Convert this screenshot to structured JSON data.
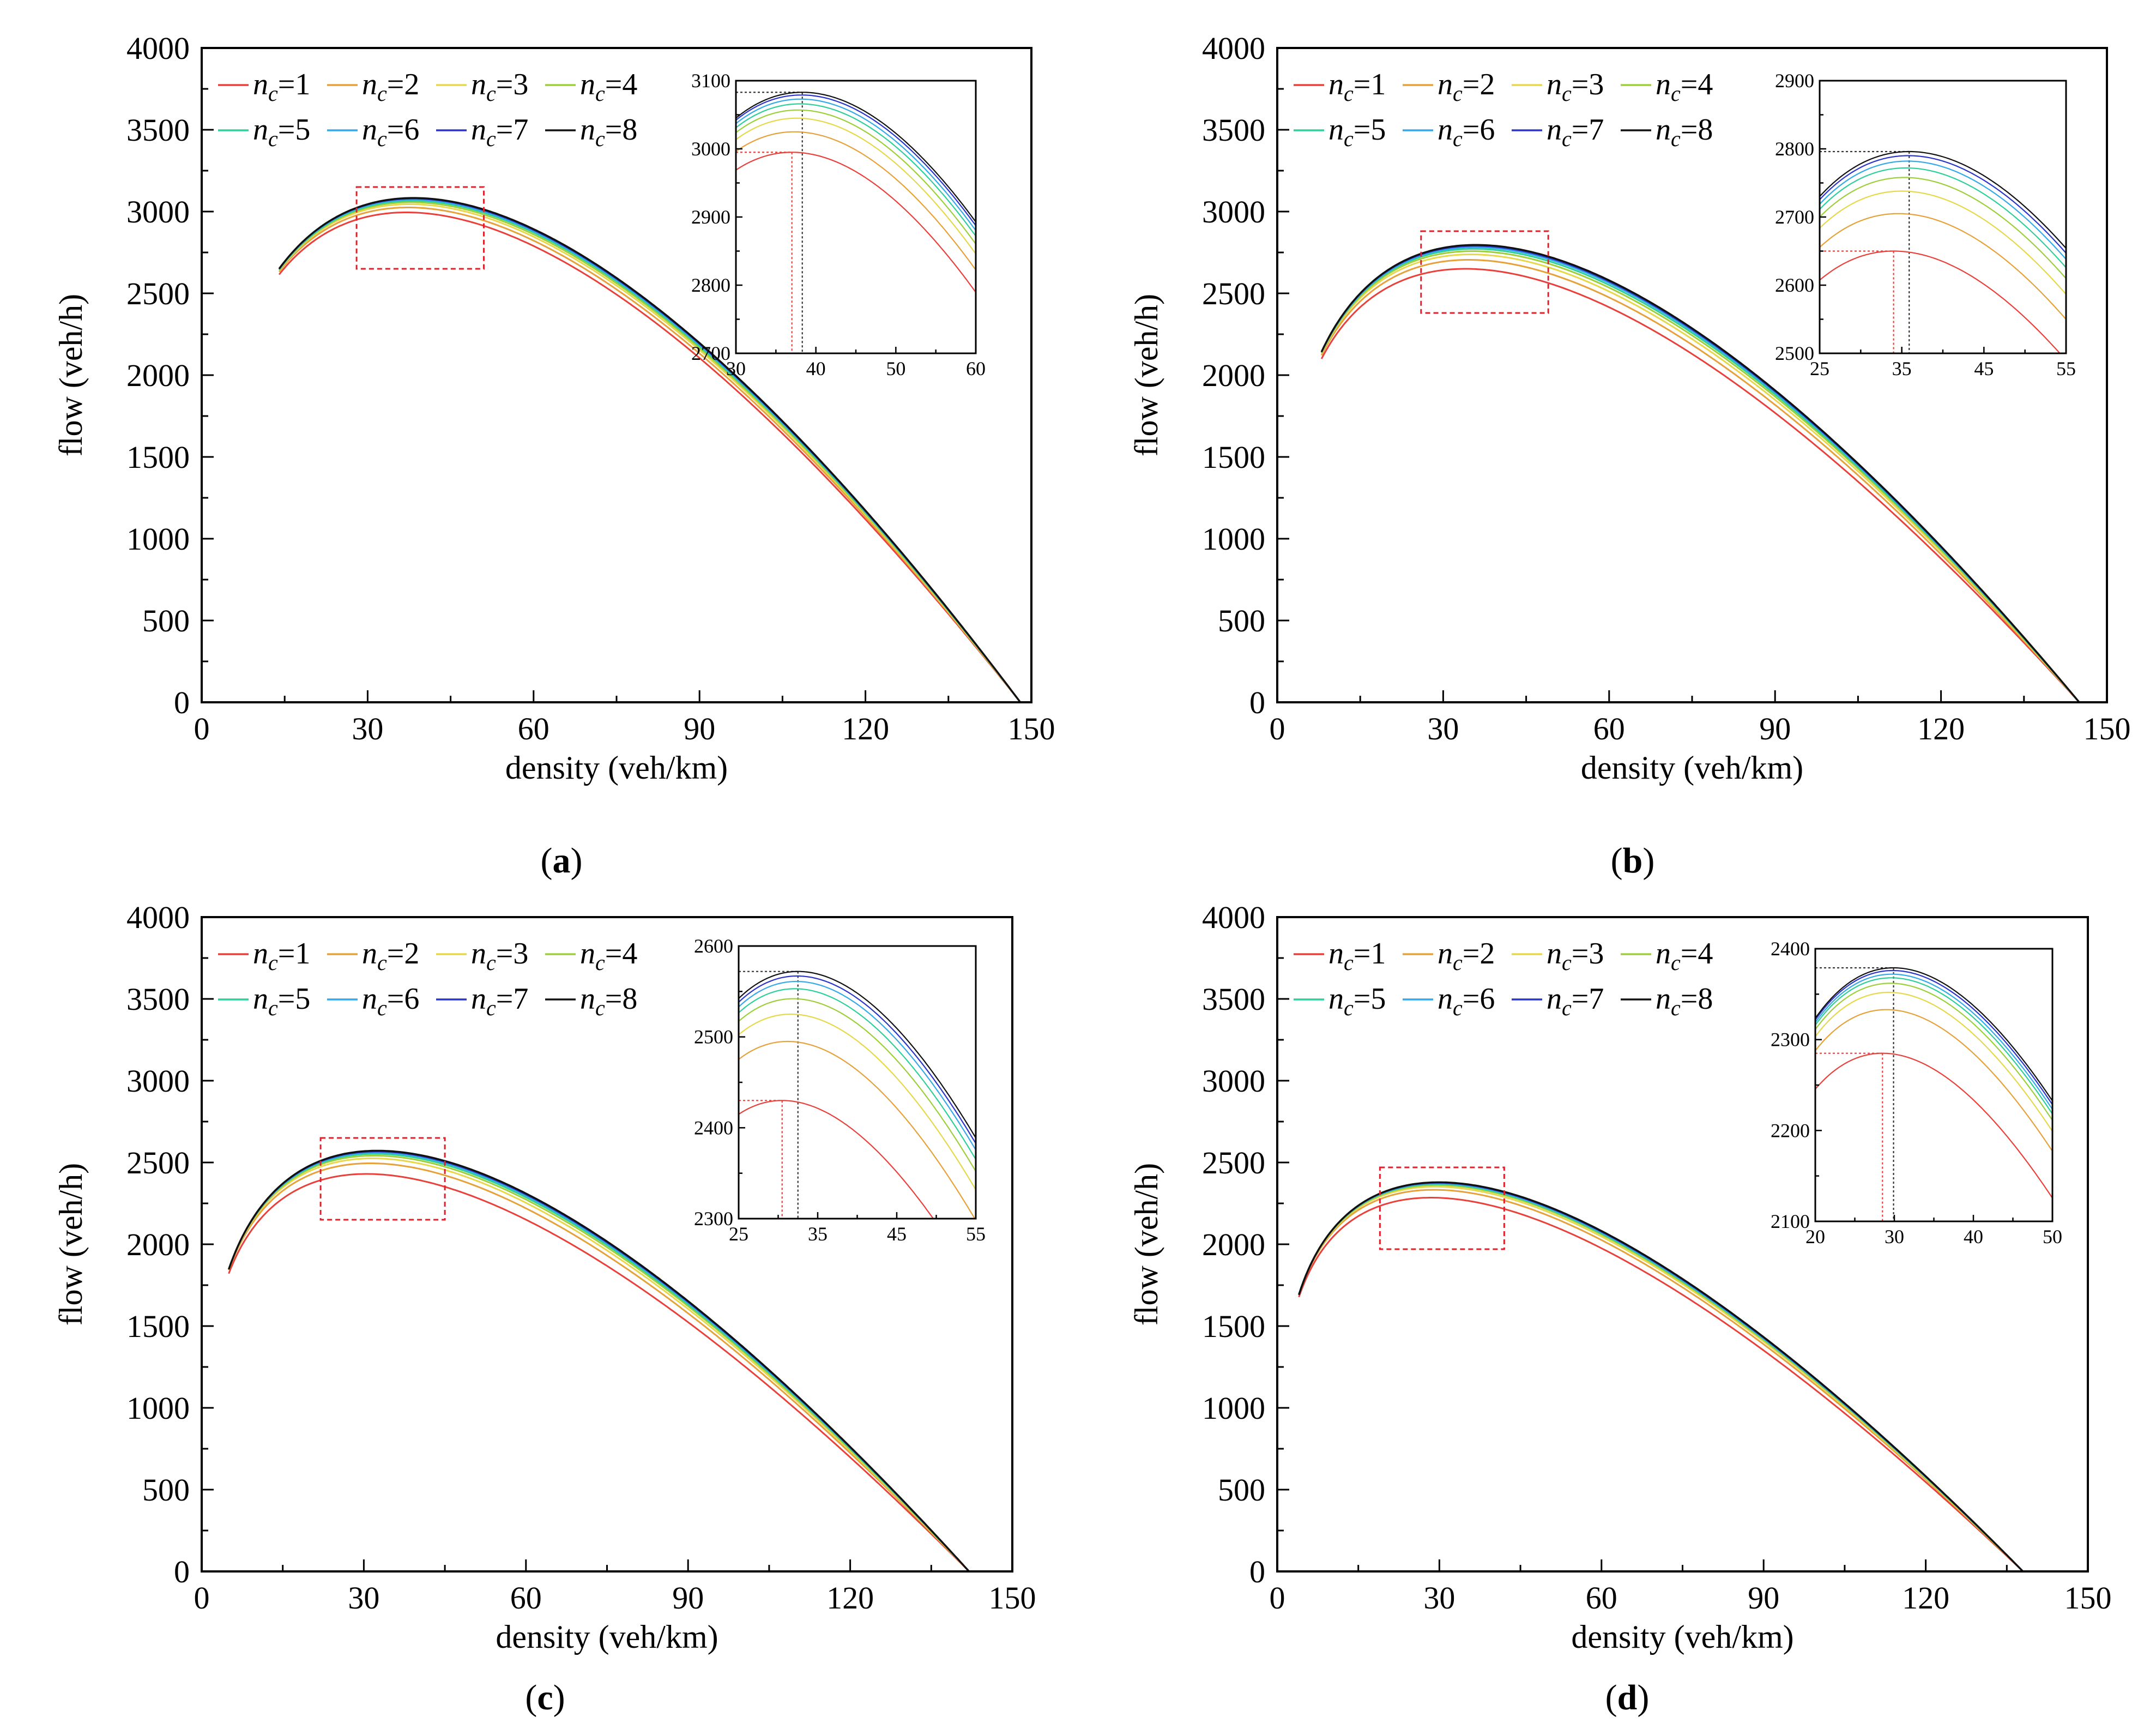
{
  "chart_data": [
    {
      "type": "line",
      "panel_label": "a",
      "xlabel": "density (veh/km)",
      "ylabel": "flow (veh/h)",
      "xlim": [
        0,
        150
      ],
      "ylim": [
        0,
        4000
      ],
      "x_ticks": [
        "0",
        "30",
        "60",
        "90",
        "120",
        "150"
      ],
      "y_ticks": [
        "0",
        "500",
        "1000",
        "1500",
        "2000",
        "2500",
        "3000",
        "3500",
        "4000"
      ],
      "legend": {
        "placement": "top-left",
        "columns": 4
      },
      "grid": false,
      "start_density": 14,
      "jam_density": 148,
      "series": [
        {
          "name": "nc=1",
          "color": "#e8413c",
          "peak_density": 37.0,
          "peak_flow": 2995
        },
        {
          "name": "nc=2",
          "color": "#e6a23a",
          "peak_density": 37.3,
          "peak_flow": 3025
        },
        {
          "name": "nc=3",
          "color": "#e6d84a",
          "peak_density": 37.6,
          "peak_flow": 3045
        },
        {
          "name": "nc=4",
          "color": "#9ccf3a",
          "peak_density": 37.8,
          "peak_flow": 3057
        },
        {
          "name": "nc=5",
          "color": "#2ecf9a",
          "peak_density": 38.0,
          "peak_flow": 3066
        },
        {
          "name": "nc=6",
          "color": "#35a8e8",
          "peak_density": 38.1,
          "peak_flow": 3073
        },
        {
          "name": "nc=7",
          "color": "#2b35c8",
          "peak_density": 38.2,
          "peak_flow": 3079
        },
        {
          "name": "nc=8",
          "color": "#111111",
          "peak_density": 38.3,
          "peak_flow": 3083
        }
      ],
      "zoom_box": {
        "x": [
          28,
          51
        ],
        "y": [
          2650,
          3150
        ]
      },
      "inset": {
        "xlim": [
          30,
          60
        ],
        "ylim": [
          2700,
          3100
        ],
        "x_ticks": [
          "30",
          "40",
          "50",
          "60"
        ],
        "y_ticks": [
          "2700",
          "2800",
          "2900",
          "3000",
          "3100"
        ]
      }
    },
    {
      "type": "line",
      "panel_label": "b",
      "xlabel": "density (veh/km)",
      "ylabel": "flow (veh/h)",
      "xlim": [
        0,
        150
      ],
      "ylim": [
        0,
        4000
      ],
      "x_ticks": [
        "0",
        "30",
        "60",
        "90",
        "120",
        "150"
      ],
      "y_ticks": [
        "0",
        "500",
        "1000",
        "1500",
        "2000",
        "2500",
        "3000",
        "3500",
        "4000"
      ],
      "legend": {
        "placement": "top-left",
        "columns": 4
      },
      "grid": false,
      "start_density": 8,
      "jam_density": 145,
      "series": [
        {
          "name": "nc=1",
          "color": "#e8413c",
          "peak_density": 34.0,
          "peak_flow": 2650
        },
        {
          "name": "nc=2",
          "color": "#e6a23a",
          "peak_density": 34.6,
          "peak_flow": 2705
        },
        {
          "name": "nc=3",
          "color": "#e6d84a",
          "peak_density": 35.0,
          "peak_flow": 2738
        },
        {
          "name": "nc=4",
          "color": "#9ccf3a",
          "peak_density": 35.3,
          "peak_flow": 2758
        },
        {
          "name": "nc=5",
          "color": "#2ecf9a",
          "peak_density": 35.5,
          "peak_flow": 2772
        },
        {
          "name": "nc=6",
          "color": "#35a8e8",
          "peak_density": 35.7,
          "peak_flow": 2782
        },
        {
          "name": "nc=7",
          "color": "#2b35c8",
          "peak_density": 35.8,
          "peak_flow": 2790
        },
        {
          "name": "nc=8",
          "color": "#111111",
          "peak_density": 35.9,
          "peak_flow": 2796
        }
      ],
      "zoom_box": {
        "x": [
          26,
          49
        ],
        "y": [
          2380,
          2880
        ]
      },
      "inset": {
        "xlim": [
          25,
          55
        ],
        "ylim": [
          2500,
          2900
        ],
        "x_ticks": [
          "25",
          "35",
          "45",
          "55"
        ],
        "y_ticks": [
          "2500",
          "2600",
          "2700",
          "2800",
          "2900"
        ]
      }
    },
    {
      "type": "line",
      "panel_label": "c",
      "xlabel": "density (veh/km)",
      "ylabel": "flow (veh/h)",
      "xlim": [
        0,
        150
      ],
      "ylim": [
        0,
        4000
      ],
      "x_ticks": [
        "0",
        "30",
        "60",
        "90",
        "120",
        "150"
      ],
      "y_ticks": [
        "0",
        "500",
        "1000",
        "1500",
        "2000",
        "2500",
        "3000",
        "3500",
        "4000"
      ],
      "legend": {
        "placement": "top-left",
        "columns": 4
      },
      "grid": false,
      "start_density": 5,
      "jam_density": 142,
      "series": [
        {
          "name": "nc=1",
          "color": "#e8413c",
          "peak_density": 30.5,
          "peak_flow": 2430
        },
        {
          "name": "nc=2",
          "color": "#e6a23a",
          "peak_density": 31.2,
          "peak_flow": 2495
        },
        {
          "name": "nc=3",
          "color": "#e6d84a",
          "peak_density": 31.6,
          "peak_flow": 2525
        },
        {
          "name": "nc=4",
          "color": "#9ccf3a",
          "peak_density": 31.9,
          "peak_flow": 2542
        },
        {
          "name": "nc=5",
          "color": "#2ecf9a",
          "peak_density": 32.1,
          "peak_flow": 2553
        },
        {
          "name": "nc=6",
          "color": "#35a8e8",
          "peak_density": 32.3,
          "peak_flow": 2561
        },
        {
          "name": "nc=7",
          "color": "#2b35c8",
          "peak_density": 32.4,
          "peak_flow": 2567
        },
        {
          "name": "nc=8",
          "color": "#111111",
          "peak_density": 32.5,
          "peak_flow": 2572
        }
      ],
      "zoom_box": {
        "x": [
          22,
          45
        ],
        "y": [
          2150,
          2650
        ]
      },
      "inset": {
        "xlim": [
          25,
          55
        ],
        "ylim": [
          2300,
          2600
        ],
        "x_ticks": [
          "25",
          "35",
          "45",
          "55"
        ],
        "y_ticks": [
          "2300",
          "2400",
          "2500",
          "2600"
        ]
      }
    },
    {
      "type": "line",
      "panel_label": "d",
      "xlabel": "density (veh/km)",
      "ylabel": "flow (veh/h)",
      "xlim": [
        0,
        150
      ],
      "ylim": [
        0,
        4000
      ],
      "x_ticks": [
        "0",
        "30",
        "60",
        "90",
        "120",
        "150"
      ],
      "y_ticks": [
        "0",
        "500",
        "1000",
        "1500",
        "2000",
        "2500",
        "3000",
        "3500",
        "4000"
      ],
      "legend": {
        "placement": "top-left",
        "columns": 4
      },
      "grid": false,
      "start_density": 4,
      "jam_density": 138,
      "series": [
        {
          "name": "nc=1",
          "color": "#e8413c",
          "peak_density": 28.5,
          "peak_flow": 2285
        },
        {
          "name": "nc=2",
          "color": "#e6a23a",
          "peak_density": 29.0,
          "peak_flow": 2333
        },
        {
          "name": "nc=3",
          "color": "#e6d84a",
          "peak_density": 29.3,
          "peak_flow": 2352
        },
        {
          "name": "nc=4",
          "color": "#9ccf3a",
          "peak_density": 29.5,
          "peak_flow": 2362
        },
        {
          "name": "nc=5",
          "color": "#2ecf9a",
          "peak_density": 29.6,
          "peak_flow": 2368
        },
        {
          "name": "nc=6",
          "color": "#35a8e8",
          "peak_density": 29.7,
          "peak_flow": 2372
        },
        {
          "name": "nc=7",
          "color": "#2b35c8",
          "peak_density": 29.8,
          "peak_flow": 2376
        },
        {
          "name": "nc=8",
          "color": "#111111",
          "peak_density": 29.9,
          "peak_flow": 2379
        }
      ],
      "zoom_box": {
        "x": [
          19,
          42
        ],
        "y": [
          1970,
          2470
        ]
      },
      "inset": {
        "xlim": [
          20,
          50
        ],
        "ylim": [
          2100,
          2400
        ],
        "x_ticks": [
          "20",
          "30",
          "40",
          "50"
        ],
        "y_ticks": [
          "2100",
          "2200",
          "2300",
          "2400"
        ]
      }
    }
  ]
}
